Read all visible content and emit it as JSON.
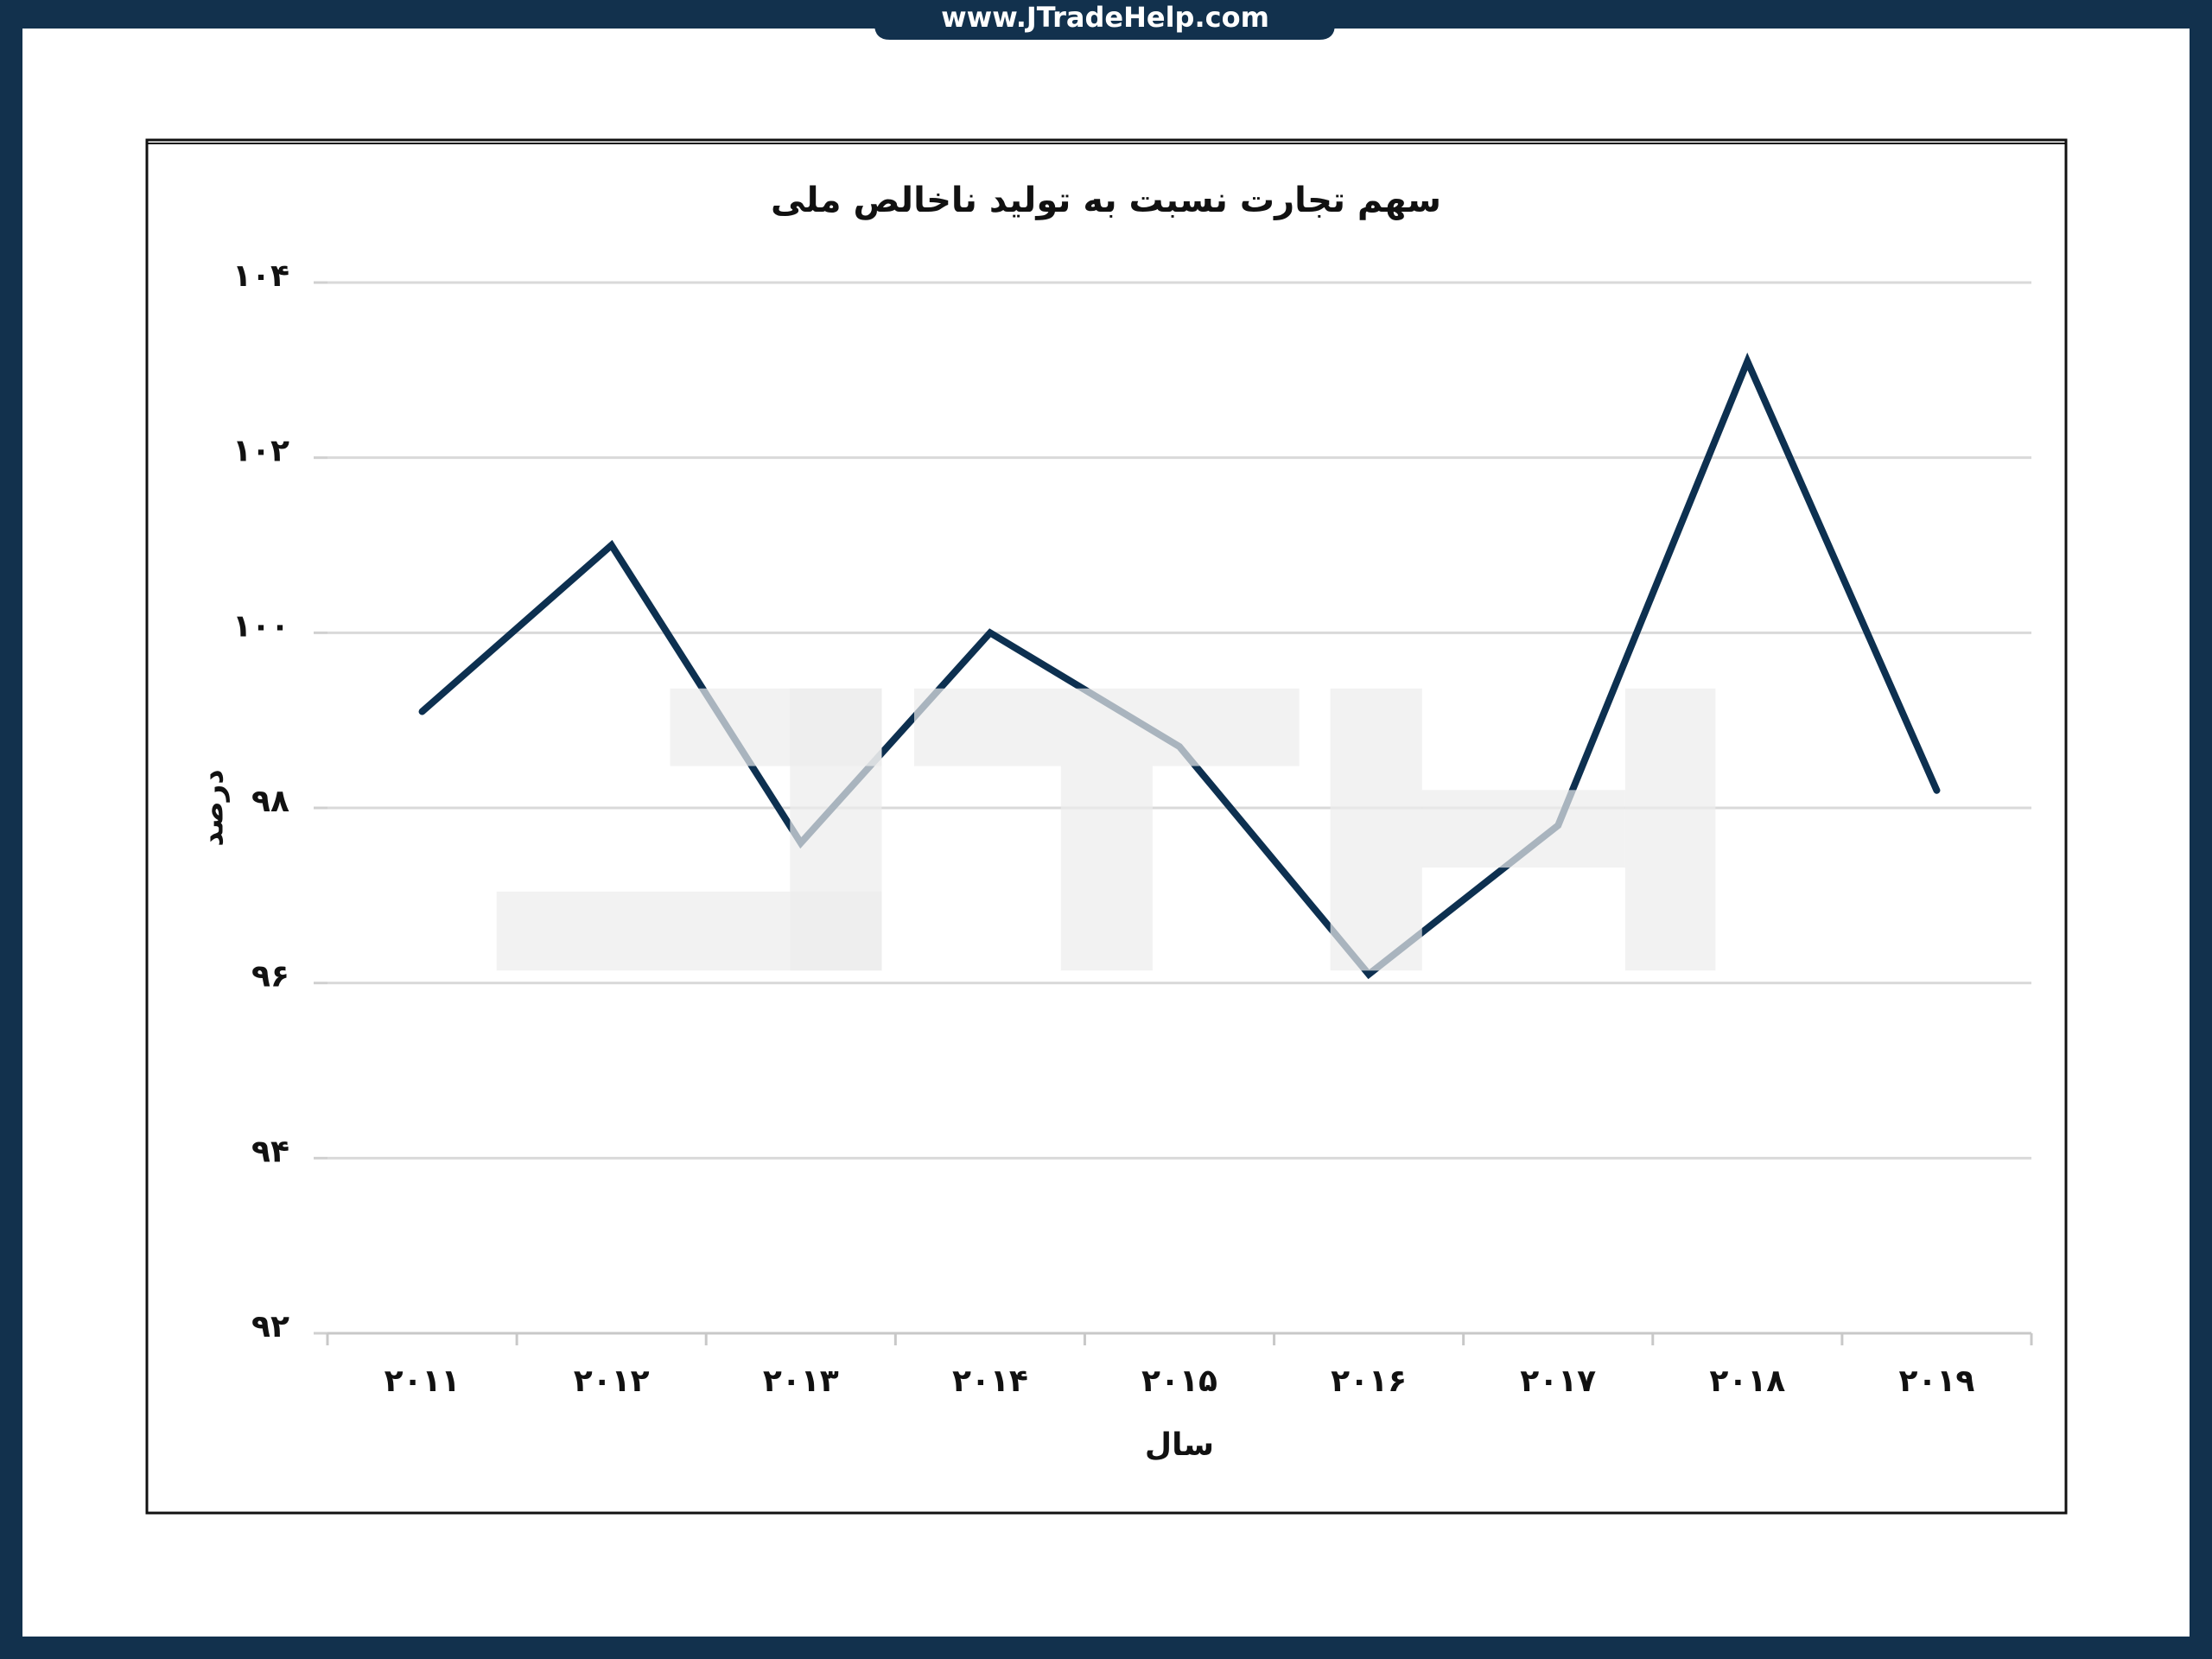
{
  "header": "www.JTradeHelp.com",
  "chart_data": {
    "type": "line",
    "title": "سهم تجارت نسبت به تولید ناخالص ملی",
    "x_label": "سال",
    "y_label": "درصد",
    "categories": [
      "۲۰۱۱",
      "۲۰۱۲",
      "۲۰۱۳",
      "۲۰۱۴",
      "۲۰۱۵",
      "۲۰۱۶",
      "۲۰۱۷",
      "۲۰۱۸",
      "۲۰۱۹"
    ],
    "values": [
      99.1,
      101.0,
      97.6,
      100.0,
      98.7,
      96.1,
      97.8,
      103.1,
      98.2
    ],
    "color": "#0d3050",
    "ylim": [
      92,
      104
    ],
    "yticks": [
      {
        "value": 92,
        "label": "۹۲"
      },
      {
        "value": 94,
        "label": "۹۴"
      },
      {
        "value": 96,
        "label": "۹۶"
      },
      {
        "value": 98,
        "label": "۹۸"
      },
      {
        "value": 100,
        "label": "۱۰۰"
      },
      {
        "value": 102,
        "label": "۱۰۲"
      },
      {
        "value": 104,
        "label": "۱۰۴"
      }
    ],
    "grid": true
  }
}
